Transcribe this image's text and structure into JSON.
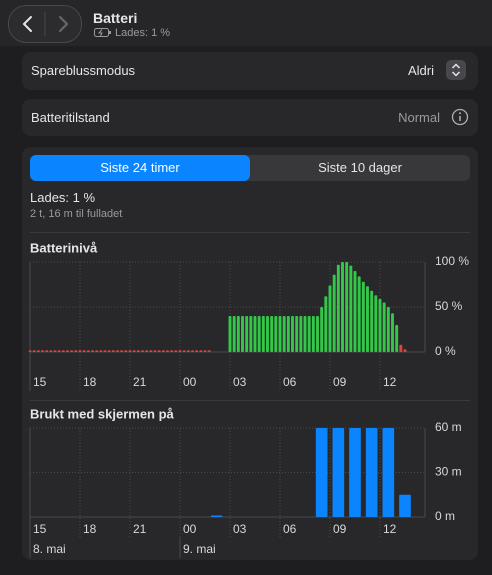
{
  "header": {
    "title": "Batteri",
    "subtitle": "Lades: 1 %"
  },
  "settings": [
    {
      "label": "Spareblussmodus",
      "value": "Aldri"
    },
    {
      "label": "Batteritilstand",
      "value": "Normal"
    }
  ],
  "tabs": {
    "items": [
      "Siste 24 timer",
      "Siste 10 dager"
    ],
    "selected": 0
  },
  "status": {
    "title": "Lades: 1 %",
    "subtitle": "2 t, 16 m til fulladet"
  },
  "chart_data": [
    {
      "type": "bar",
      "title": "Batterinivå",
      "xlim": [
        15,
        38.7
      ],
      "xticks": [
        {
          "value": 15,
          "label": "15"
        },
        {
          "value": 18,
          "label": "18"
        },
        {
          "value": 21,
          "label": "21"
        },
        {
          "value": 24,
          "label": "00"
        },
        {
          "value": 27,
          "label": "03"
        },
        {
          "value": 30,
          "label": "06"
        },
        {
          "value": 33,
          "label": "09"
        },
        {
          "value": 36,
          "label": "12"
        }
      ],
      "ylim": [
        0,
        100
      ],
      "yticks": [
        {
          "value": 0,
          "label": "0 %"
        },
        {
          "value": 50,
          "label": "50 %"
        },
        {
          "value": 100,
          "label": "100 %"
        }
      ],
      "grid": true,
      "series": [
        {
          "color": "#e0443e",
          "x": [
            15,
            15.25,
            15.5,
            15.75,
            16,
            16.25,
            16.5,
            16.75,
            17,
            17.25,
            17.5,
            17.75,
            18,
            18.25,
            18.5,
            18.75,
            19,
            19.25,
            19.5,
            19.75,
            20,
            20.25,
            20.5,
            20.75,
            21,
            21.25,
            21.5,
            21.75,
            22,
            22.25,
            22.5,
            22.75,
            23,
            23.25,
            23.5,
            23.75,
            24,
            24.25,
            24.5,
            24.75,
            25,
            25.25,
            25.5,
            25.75,
            37.25,
            37.5
          ],
          "values": [
            2,
            2,
            2,
            2,
            2,
            2,
            2,
            2,
            2,
            2,
            2,
            2,
            2,
            2,
            2,
            2,
            2,
            2,
            2,
            2,
            2,
            2,
            2,
            2,
            2,
            2,
            2,
            2,
            2,
            2,
            2,
            2,
            2,
            2,
            2,
            2,
            2,
            2,
            2,
            2,
            2,
            2,
            2,
            2,
            8,
            3
          ]
        },
        {
          "color": "#34c84a",
          "x": [
            27,
            27.25,
            27.5,
            27.75,
            28,
            28.25,
            28.5,
            28.75,
            29,
            29.25,
            29.5,
            29.75,
            30,
            30.25,
            30.5,
            30.75,
            31,
            31.25,
            31.5,
            31.75,
            32,
            32.25,
            32.5,
            32.75,
            33,
            33.25,
            33.5,
            33.75,
            34,
            34.25,
            34.5,
            34.75,
            35,
            35.25,
            35.5,
            35.75,
            36,
            36.25,
            36.5,
            36.75,
            37
          ],
          "values": [
            40,
            40,
            40,
            40,
            40,
            40,
            40,
            40,
            40,
            40,
            40,
            40,
            40,
            40,
            40,
            40,
            40,
            40,
            40,
            40,
            40,
            40,
            50,
            62,
            74,
            86,
            97,
            100,
            100,
            96,
            90,
            84,
            78,
            73,
            68,
            63,
            59,
            55,
            50,
            43,
            30
          ]
        }
      ]
    },
    {
      "type": "bar",
      "title": "Brukt med skjermen på",
      "xlim": [
        15,
        38.7
      ],
      "xticks": [
        {
          "value": 15,
          "label": "15"
        },
        {
          "value": 18,
          "label": "18"
        },
        {
          "value": 21,
          "label": "21"
        },
        {
          "value": 24,
          "label": "00"
        },
        {
          "value": 27,
          "label": "03"
        },
        {
          "value": 30,
          "label": "06"
        },
        {
          "value": 33,
          "label": "09"
        },
        {
          "value": 36,
          "label": "12"
        }
      ],
      "date_labels": [
        {
          "value": 15,
          "label": "8. mai"
        },
        {
          "value": 24,
          "label": "9. mai"
        }
      ],
      "ylim": [
        0,
        60
      ],
      "yticks": [
        {
          "value": 0,
          "label": "0 m"
        },
        {
          "value": 30,
          "label": "30 m"
        },
        {
          "value": 60,
          "label": "60 m"
        }
      ],
      "grid": true,
      "series": [
        {
          "color": "#0a84ff",
          "x": [
            26.2,
            32.5,
            33.5,
            34.5,
            35.5,
            36.5,
            37.5
          ],
          "values": [
            1,
            60,
            60,
            60,
            60,
            60,
            15
          ]
        }
      ]
    }
  ]
}
